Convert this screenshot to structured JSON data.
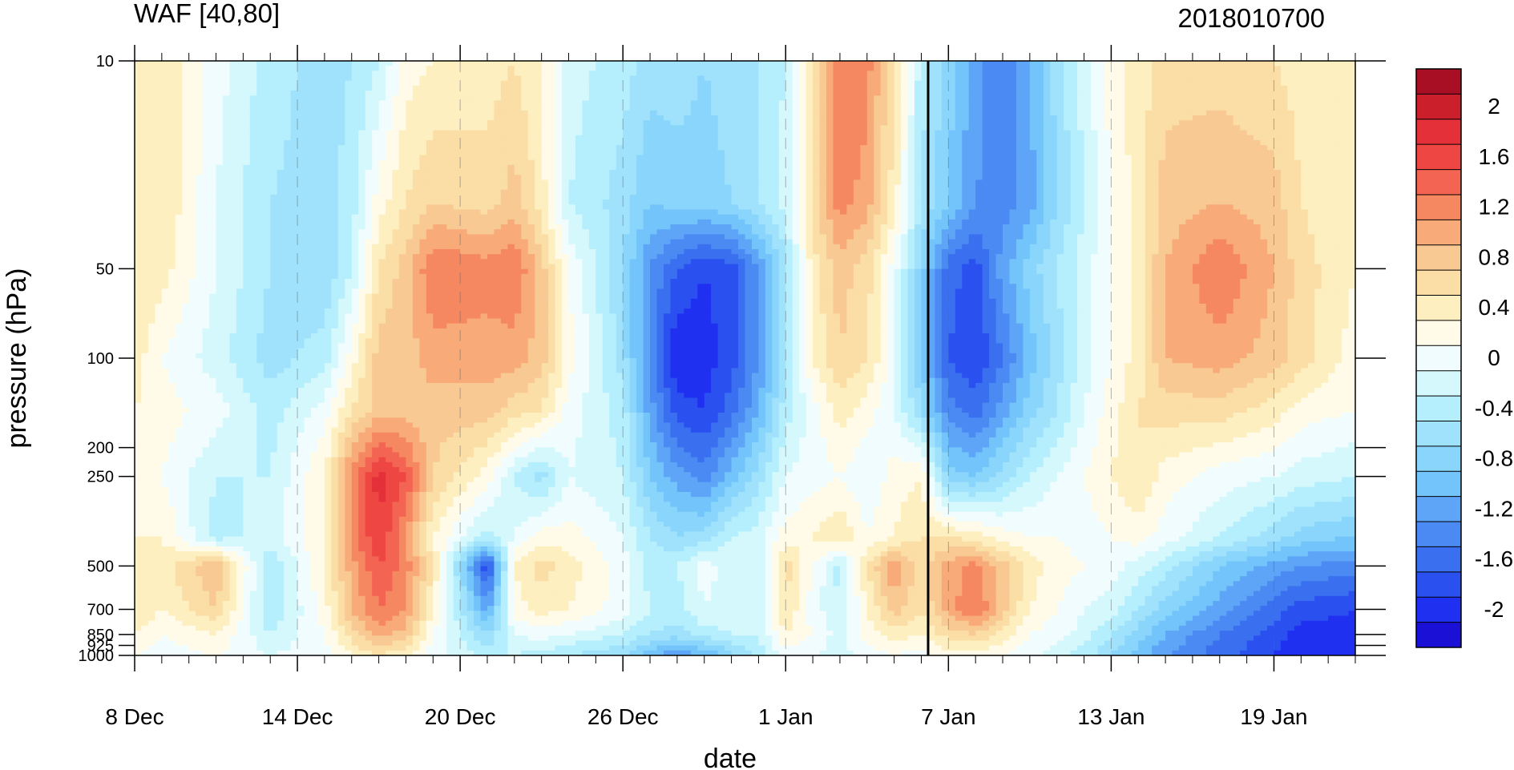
{
  "chart_data": {
    "type": "heatmap",
    "title": "WAF [40,80]",
    "date_label": "2018010700",
    "xlabel": "date",
    "ylabel": "pressure (hPa)",
    "x_axis": {
      "start": "8 Dec",
      "end": "22 Jan",
      "tick_labels": [
        "8 Dec",
        "14 Dec",
        "20 Dec",
        "26 Dec",
        "1 Jan",
        "7 Jan",
        "13 Jan",
        "19 Jan"
      ],
      "tick_days": [
        0,
        6,
        12,
        18,
        24,
        30,
        36,
        42
      ],
      "minor_tick_every_days": 1,
      "xlim_days": [
        0,
        45
      ],
      "dashed_gridlines": true,
      "marker_line": "7 Jan"
    },
    "y_axis": {
      "scale": "log",
      "direction": "reversed",
      "tick_labels": [
        "10",
        "50",
        "100",
        "200",
        "250",
        "500",
        "700",
        "850",
        "925",
        "1000"
      ],
      "tick_values": [
        10,
        50,
        100,
        200,
        250,
        500,
        700,
        850,
        925,
        1000
      ],
      "ylim": [
        10,
        1000
      ]
    },
    "colorbar": {
      "labels": [
        "2",
        "1.6",
        "1.2",
        "0.8",
        "0.4",
        "0",
        "-0.4",
        "-0.8",
        "-1.2",
        "-1.6",
        "-2"
      ],
      "label_values": [
        2,
        1.6,
        1.2,
        0.8,
        0.4,
        0,
        -0.4,
        -0.8,
        -1.2,
        -1.6,
        -2
      ],
      "levels": [
        -2.2,
        -2.0,
        -1.8,
        -1.6,
        -1.4,
        -1.2,
        -1.0,
        -0.8,
        -0.6,
        -0.4,
        -0.2,
        0.0,
        0.2,
        0.4,
        0.6,
        0.8,
        1.0,
        1.2,
        1.4,
        1.6,
        1.8,
        2.0,
        2.2
      ],
      "colors": [
        "#1a10d6",
        "#2030f0",
        "#2a50f0",
        "#3a70f0",
        "#4a8af2",
        "#5fa5f7",
        "#72c4fa",
        "#8ad5fb",
        "#a0e2fc",
        "#b5eefd",
        "#d5f8fd",
        "#f0fcfd",
        "#fffbe8",
        "#fdefc0",
        "#fbdda6",
        "#f9c993",
        "#f8aa78",
        "#f58860",
        "#f36452",
        "#ee4642",
        "#e43038",
        "#cb202c",
        "#a80f25"
      ]
    },
    "field": {
      "units": "WAF",
      "x_days": [
        0,
        1,
        3,
        5,
        7,
        8,
        9,
        10,
        11,
        13,
        14,
        15,
        16,
        18,
        19,
        20,
        21,
        22,
        23,
        24,
        25,
        26,
        27,
        28,
        29,
        30,
        31,
        32,
        33,
        34,
        35,
        36,
        37,
        38,
        40,
        42,
        43,
        45
      ],
      "y_hpa": [
        10,
        30,
        50,
        100,
        150,
        250,
        400,
        500,
        700,
        850,
        1000
      ],
      "values": [
        [
          0.4,
          0.5,
          0.0,
          -0.4,
          -0.6,
          -0.5,
          -0.3,
          0.2,
          0.3,
          0.4,
          0.5,
          0.3,
          -0.2,
          -0.4,
          -0.6,
          -0.6,
          -0.7,
          -0.6,
          -0.5,
          -0.3,
          0.6,
          1.3,
          1.2,
          0.5,
          -0.4,
          -0.8,
          -1.2,
          -1.5,
          -1.1,
          -0.6,
          -0.2,
          0.2,
          0.4,
          0.6,
          0.6,
          0.5,
          0.4,
          0.3
        ],
        [
          0.4,
          0.5,
          -0.1,
          -0.5,
          -0.6,
          -0.4,
          0.2,
          0.5,
          0.7,
          0.6,
          0.8,
          0.4,
          -0.3,
          -0.6,
          -0.9,
          -0.8,
          -0.8,
          -0.7,
          -0.5,
          -0.2,
          0.6,
          1.2,
          1.0,
          0.4,
          -0.5,
          -0.9,
          -1.3,
          -1.4,
          -1.2,
          -0.7,
          -0.3,
          0.1,
          0.4,
          0.8,
          0.9,
          0.8,
          0.5,
          0.3
        ],
        [
          0.5,
          0.4,
          -0.1,
          -0.5,
          -0.7,
          -0.3,
          0.5,
          0.8,
          1.3,
          1.2,
          1.3,
          0.8,
          0.1,
          -0.7,
          -1.3,
          -1.7,
          -1.9,
          -1.8,
          -1.3,
          -0.6,
          0.4,
          0.8,
          0.6,
          0.0,
          -0.8,
          -1.6,
          -1.8,
          -1.2,
          -0.8,
          -0.5,
          -0.2,
          0.1,
          0.4,
          0.9,
          1.3,
          0.9,
          0.6,
          0.3
        ],
        [
          0.4,
          0.1,
          -0.2,
          -0.6,
          -0.4,
          0.2,
          0.8,
          0.8,
          1.0,
          1.0,
          1.0,
          0.8,
          0.2,
          -0.6,
          -1.4,
          -2.1,
          -2.0,
          -1.8,
          -1.3,
          -0.5,
          0.3,
          0.7,
          0.5,
          0.0,
          -0.9,
          -1.7,
          -1.9,
          -1.5,
          -1.0,
          -0.6,
          -0.2,
          0.1,
          0.4,
          0.9,
          1.0,
          0.8,
          0.6,
          0.2
        ],
        [
          0.3,
          0.2,
          0.0,
          -0.4,
          0.0,
          0.5,
          0.8,
          0.8,
          0.8,
          0.8,
          0.6,
          0.5,
          0.0,
          -0.4,
          -1.2,
          -1.8,
          -1.9,
          -1.6,
          -1.1,
          -0.4,
          0.0,
          0.4,
          0.2,
          -0.1,
          -0.7,
          -1.4,
          -1.6,
          -1.2,
          -0.8,
          -0.5,
          -0.1,
          0.2,
          0.5,
          0.6,
          0.6,
          0.4,
          0.2,
          0.1
        ],
        [
          0.2,
          0.1,
          -0.3,
          -0.3,
          0.3,
          1.2,
          1.8,
          1.5,
          0.7,
          0.2,
          -0.3,
          -0.6,
          -0.1,
          -0.3,
          -0.9,
          -1.2,
          -1.4,
          -1.0,
          -0.6,
          -0.1,
          0.0,
          0.1,
          -0.1,
          0.2,
          0.3,
          -0.8,
          -0.9,
          -0.6,
          -0.3,
          -0.1,
          0.1,
          0.3,
          0.5,
          0.2,
          0.0,
          -0.1,
          -0.2,
          -0.3
        ],
        [
          0.3,
          0.3,
          -0.4,
          -0.2,
          0.3,
          1.2,
          1.7,
          1.1,
          0.3,
          -0.4,
          -0.1,
          0.2,
          0.2,
          -0.1,
          -0.5,
          -0.7,
          -0.6,
          -0.3,
          -0.2,
          0.2,
          0.3,
          0.5,
          0.1,
          0.3,
          0.5,
          0.5,
          0.4,
          0.2,
          0.1,
          0.1,
          0.0,
          0.1,
          0.2,
          0.0,
          -0.3,
          -0.6,
          -0.8,
          -0.9
        ],
        [
          0.4,
          0.4,
          0.9,
          -0.5,
          0.3,
          1.0,
          1.5,
          1.2,
          0.5,
          -1.9,
          0.3,
          0.6,
          0.4,
          0.0,
          -0.4,
          -0.3,
          0.0,
          -0.2,
          -0.3,
          0.6,
          0.1,
          -0.4,
          0.5,
          1.1,
          0.6,
          1.0,
          1.2,
          0.8,
          0.4,
          0.2,
          0.1,
          0.0,
          -0.2,
          -0.4,
          -0.9,
          -1.2,
          -1.3,
          -1.4
        ],
        [
          0.5,
          0.3,
          0.7,
          -0.5,
          0.2,
          0.9,
          1.3,
          1.1,
          0.3,
          -1.2,
          0.2,
          0.4,
          0.3,
          0.0,
          -0.3,
          -0.4,
          -0.1,
          -0.2,
          -0.2,
          0.5,
          0.0,
          -0.3,
          0.3,
          0.8,
          0.5,
          1.0,
          1.3,
          0.8,
          0.3,
          0.1,
          -0.1,
          -0.2,
          -0.5,
          -0.8,
          -1.2,
          -1.6,
          -1.8,
          -1.9
        ],
        [
          0.3,
          0.1,
          0.3,
          -0.3,
          0.1,
          0.6,
          1.0,
          0.8,
          0.1,
          -0.7,
          -0.1,
          0.0,
          -0.1,
          -0.3,
          -0.5,
          -0.6,
          -0.4,
          -0.3,
          -0.3,
          0.3,
          0.1,
          -0.2,
          0.2,
          0.4,
          0.3,
          0.6,
          0.7,
          0.4,
          0.1,
          0.0,
          -0.2,
          -0.5,
          -0.8,
          -1.1,
          -1.5,
          -1.8,
          -2.0,
          -2.0
        ],
        [
          0.1,
          0.0,
          0.1,
          -0.1,
          0.0,
          0.3,
          0.5,
          0.3,
          0.0,
          -0.4,
          -0.3,
          -0.4,
          -0.5,
          -0.7,
          -1.0,
          -1.3,
          -1.1,
          -0.8,
          -0.4,
          0.0,
          -0.1,
          -0.2,
          0.0,
          0.1,
          0.0,
          0.2,
          0.2,
          0.1,
          0.0,
          -0.2,
          -0.4,
          -0.7,
          -1.0,
          -1.3,
          -1.6,
          -1.9,
          -2.0,
          -2.1
        ]
      ]
    }
  }
}
